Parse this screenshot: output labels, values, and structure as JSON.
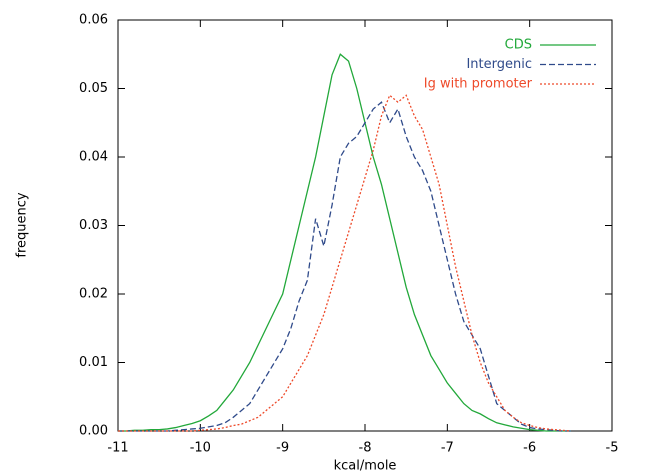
{
  "chart_data": {
    "type": "line",
    "xlabel": "kcal/mole",
    "ylabel": "frequency",
    "x": [
      -11,
      -10.9,
      -10.8,
      -10.7,
      -10.6,
      -10.5,
      -10.4,
      -10.3,
      -10.2,
      -10.1,
      -10,
      -9.9,
      -9.8,
      -9.7,
      -9.6,
      -9.5,
      -9.4,
      -9.3,
      -9.2,
      -9.1,
      -9,
      -8.9,
      -8.8,
      -8.7,
      -8.6,
      -8.5,
      -8.4,
      -8.3,
      -8.2,
      -8.1,
      -8,
      -7.9,
      -7.8,
      -7.7,
      -7.6,
      -7.5,
      -7.4,
      -7.3,
      -7.2,
      -7.1,
      -7,
      -6.9,
      -6.8,
      -6.7,
      -6.6,
      -6.5,
      -6.4,
      -6.3,
      -6.2,
      -6.1,
      -6,
      -5.9,
      -5.8,
      -5.7,
      -5.6,
      -5.5
    ],
    "series": [
      {
        "name": "CDS",
        "color": "#22a83a",
        "dash": "solid",
        "values": [
          0,
          0,
          0.0001,
          0.0001,
          0.0002,
          0.0002,
          0.0003,
          0.0005,
          0.0008,
          0.0011,
          0.0015,
          0.0022,
          0.003,
          0.0045,
          0.006,
          0.008,
          0.01,
          0.0125,
          0.015,
          0.0175,
          0.02,
          0.025,
          0.03,
          0.035,
          0.04,
          0.046,
          0.052,
          0.055,
          0.054,
          0.05,
          0.045,
          0.04,
          0.036,
          0.031,
          0.026,
          0.021,
          0.017,
          0.014,
          0.011,
          0.009,
          0.007,
          0.0055,
          0.004,
          0.003,
          0.0025,
          0.0018,
          0.0012,
          0.0009,
          0.0006,
          0.0004,
          0.0002,
          0.0001,
          0,
          0,
          0,
          0
        ]
      },
      {
        "name": "Intergenic",
        "color": "#2f4a8a",
        "dash": "dashed",
        "values": [
          0,
          0,
          0,
          0,
          0,
          0,
          0,
          0.0001,
          0.0002,
          0.0003,
          0.0004,
          0.0006,
          0.0008,
          0.0012,
          0.002,
          0.003,
          0.004,
          0.006,
          0.008,
          0.01,
          0.012,
          0.015,
          0.019,
          0.022,
          0.031,
          0.027,
          0.033,
          0.04,
          0.042,
          0.043,
          0.045,
          0.047,
          0.048,
          0.045,
          0.047,
          0.043,
          0.04,
          0.038,
          0.035,
          0.03,
          0.025,
          0.02,
          0.016,
          0.014,
          0.012,
          0.008,
          0.004,
          0.003,
          0.002,
          0.001,
          0.0005,
          0.0003,
          0.0002,
          0.0001,
          0,
          0
        ]
      },
      {
        "name": "Ig with promoter",
        "color": "#ee4a2a",
        "dash": "dotted",
        "values": [
          0,
          0,
          0,
          0,
          0,
          0,
          0,
          0,
          0,
          0,
          0.0001,
          0.0002,
          0.0003,
          0.0005,
          0.0008,
          0.001,
          0.0015,
          0.002,
          0.003,
          0.004,
          0.005,
          0.007,
          0.009,
          0.011,
          0.014,
          0.017,
          0.021,
          0.025,
          0.029,
          0.033,
          0.037,
          0.041,
          0.046,
          0.049,
          0.048,
          0.049,
          0.046,
          0.044,
          0.04,
          0.036,
          0.03,
          0.024,
          0.019,
          0.014,
          0.01,
          0.007,
          0.005,
          0.003,
          0.002,
          0.0012,
          0.0008,
          0.0005,
          0.0003,
          0.0002,
          0.0001,
          0
        ]
      }
    ],
    "xlim": [
      -11,
      -5
    ],
    "xticks": [
      -11,
      -10,
      -9,
      -8,
      -7,
      -6,
      -5
    ],
    "ylim": [
      0,
      0.06
    ],
    "yticks": [
      {
        "value": 0,
        "label": "0.00"
      },
      0.01,
      0.02,
      0.03,
      0.04,
      0.05,
      0.06
    ],
    "legend": "top-right",
    "grid": false
  }
}
